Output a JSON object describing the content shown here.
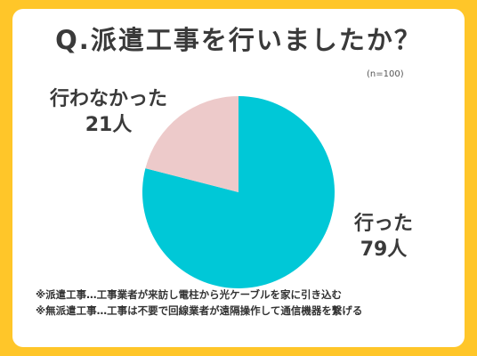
{
  "title": "Q.派遣工事を行いましたか？",
  "sample_size": "(n=100)",
  "chart_data": {
    "type": "pie",
    "title": "Q.派遣工事を行いましたか？",
    "slices": [
      {
        "label": "行った",
        "value": 79,
        "display": "79人",
        "color": "#00C8D7"
      },
      {
        "label": "行わなかった",
        "value": 21,
        "display": "21人",
        "color": "#EDCACA"
      }
    ],
    "total": 100,
    "unit": "人"
  },
  "notes": [
    "※派遣工事…工事業者が来訪し電柱から光ケーブルを家に引き込む",
    "※無派遣工事…工事は不要で回線業者が遠隔操作して通信機器を繋げる"
  ],
  "colors": {
    "background": "#FFC629",
    "card": "#FFFFFF",
    "text": "#333333"
  }
}
